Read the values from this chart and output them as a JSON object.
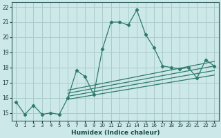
{
  "xlabel": "Humidex (Indice chaleur)",
  "bg_color": "#cce8e8",
  "grid_color": "#aacccc",
  "line_color": "#2d7a6e",
  "xlim": [
    -0.5,
    23.5
  ],
  "ylim": [
    14.5,
    22.3
  ],
  "xticks": [
    0,
    1,
    2,
    3,
    4,
    5,
    6,
    7,
    8,
    9,
    10,
    11,
    12,
    13,
    14,
    15,
    16,
    17,
    18,
    19,
    20,
    21,
    22,
    23
  ],
  "yticks": [
    15,
    16,
    17,
    18,
    19,
    20,
    21,
    22
  ],
  "main_x": [
    0,
    1,
    2,
    3,
    4,
    5,
    6,
    7,
    8,
    9,
    10,
    11,
    12,
    13,
    14,
    15,
    16,
    17,
    18,
    19,
    20,
    21,
    22,
    23
  ],
  "main_y": [
    15.7,
    14.9,
    15.5,
    14.9,
    15.0,
    14.9,
    16.0,
    17.8,
    17.4,
    16.2,
    19.2,
    21.0,
    21.0,
    20.8,
    21.8,
    20.2,
    19.3,
    18.1,
    18.0,
    17.9,
    18.0,
    17.3,
    18.5,
    18.1
  ],
  "straight_lines": [
    {
      "x": [
        6,
        23
      ],
      "y": [
        15.9,
        17.5
      ]
    },
    {
      "x": [
        6,
        23
      ],
      "y": [
        16.1,
        17.8
      ]
    },
    {
      "x": [
        6,
        23
      ],
      "y": [
        16.3,
        18.1
      ]
    },
    {
      "x": [
        6,
        23
      ],
      "y": [
        16.5,
        18.4
      ]
    }
  ]
}
